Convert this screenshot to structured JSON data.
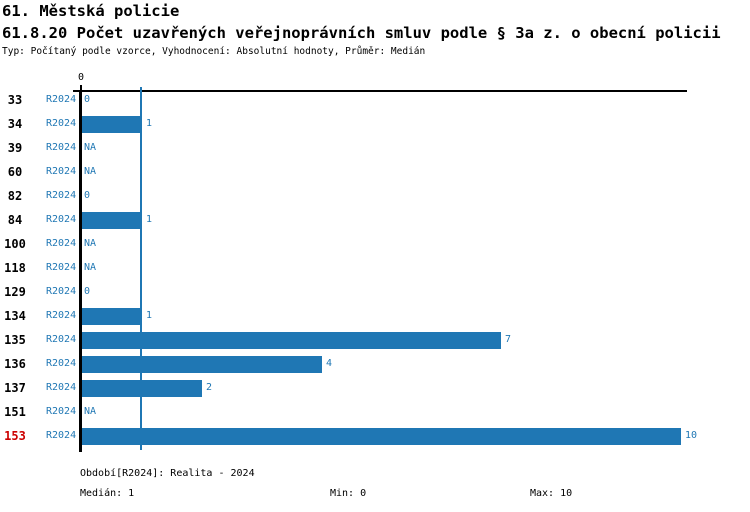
{
  "header": {
    "title_line1": "61. Městská policie",
    "title_line2": "61.8.20 Počet uzavřených veřejnoprávních smluv podle § 3a z. o obecní policii",
    "subtitle": "Typ: Počítaný podle vzorce, Vyhodnocení: Absolutní hodnoty, Průměr: Medián"
  },
  "chart_data": {
    "type": "bar",
    "orientation": "horizontal",
    "categories": [
      "33",
      "34",
      "39",
      "60",
      "82",
      "84",
      "100",
      "118",
      "129",
      "134",
      "135",
      "136",
      "137",
      "151",
      "153"
    ],
    "period_label": "R2024",
    "values": [
      0,
      1,
      null,
      null,
      0,
      1,
      null,
      null,
      0,
      1,
      7,
      4,
      2,
      null,
      10
    ],
    "value_labels": [
      "0",
      "1",
      "NA",
      "NA",
      "0",
      "1",
      "NA",
      "NA",
      "0",
      "1",
      "7",
      "4",
      "2",
      "NA",
      "10"
    ],
    "highlighted_category": "153",
    "median_line_value": 1,
    "axis": {
      "tick_label": "0",
      "min": 0,
      "max": 10,
      "grid": false
    },
    "colors": {
      "bar": "#1f77b4",
      "blue_text": "#1f77b4",
      "highlight_red": "#cc0000",
      "axis_black": "#000000"
    }
  },
  "footer": {
    "period": "Období[R2024]: Realita - 2024",
    "median": "Medián: 1",
    "min": "Min: 0",
    "max": "Max: 10"
  }
}
